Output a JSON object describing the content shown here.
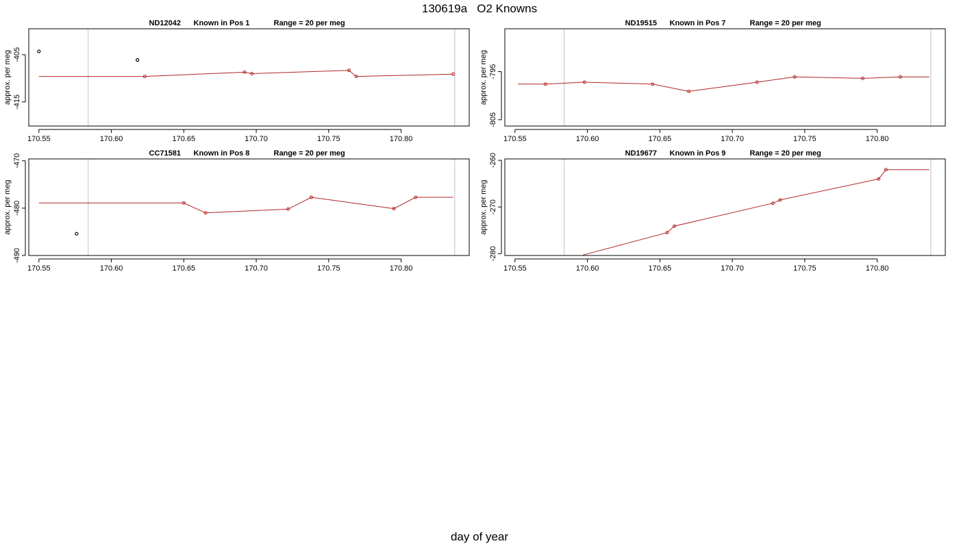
{
  "figure": {
    "title": "130619a   O2 Knowns",
    "xlabel": "day of year"
  },
  "colors": {
    "line": "#b22222",
    "frame": "#000000",
    "marker_line": "#c0c0c0"
  },
  "chart_data": [
    {
      "type": "line",
      "title_parts": [
        "ND12042",
        "Known in Pos 1",
        "Range = 20 per meg"
      ],
      "ylabel": "approx. per meg",
      "xlim": [
        170.543,
        170.847
      ],
      "ylim": [
        -420.1,
        -399.5
      ],
      "xticks": [
        170.55,
        170.6,
        170.65,
        170.7,
        170.75,
        170.8
      ],
      "xtick_labels": [
        "170.55",
        "170.60",
        "170.65",
        "170.70",
        "170.75",
        "170.80"
      ],
      "yticks": [
        -405,
        -415
      ],
      "ytick_labels": [
        "-405",
        "-415"
      ],
      "vlines": [
        170.584,
        170.837
      ],
      "line": {
        "x": [
          170.55,
          170.623,
          170.692,
          170.697,
          170.764,
          170.769,
          170.836
        ],
        "y": [
          -409.6,
          -409.6,
          -408.7,
          -409.0,
          -408.3,
          -409.6,
          -409.1
        ]
      },
      "points": {
        "x": [
          170.623,
          170.692,
          170.697,
          170.764,
          170.769,
          170.836
        ],
        "y": [
          -409.6,
          -408.7,
          -409.0,
          -408.3,
          -409.6,
          -409.1
        ]
      },
      "outliers": {
        "x": [
          170.55,
          170.618
        ],
        "y": [
          -404.3,
          -406.1
        ]
      }
    },
    {
      "type": "line",
      "title_parts": [
        "ND19515",
        "Known in Pos 7",
        "Range = 20 per meg"
      ],
      "ylabel": "approx. per meg",
      "xlim": [
        170.543,
        170.847
      ],
      "ylim": [
        -806.3,
        -786.1
      ],
      "xticks": [
        170.55,
        170.6,
        170.65,
        170.7,
        170.75,
        170.8
      ],
      "xtick_labels": [
        "170.55",
        "170.60",
        "170.65",
        "170.70",
        "170.75",
        "170.80"
      ],
      "yticks": [
        -795,
        -805
      ],
      "ytick_labels": [
        "-795",
        "-805"
      ],
      "vlines": [
        170.584,
        170.837
      ],
      "line": {
        "x": [
          170.552,
          170.571,
          170.598,
          170.645,
          170.67,
          170.717,
          170.743,
          170.79,
          170.816,
          170.836
        ],
        "y": [
          -797.6,
          -797.6,
          -797.2,
          -797.6,
          -799.1,
          -797.2,
          -796.1,
          -796.4,
          -796.1,
          -796.1
        ]
      },
      "points": {
        "x": [
          170.571,
          170.598,
          170.645,
          170.67,
          170.717,
          170.743,
          170.79,
          170.816
        ],
        "y": [
          -797.6,
          -797.2,
          -797.6,
          -799.1,
          -797.2,
          -796.1,
          -796.4,
          -796.1
        ]
      },
      "outliers": {
        "x": [],
        "y": []
      }
    },
    {
      "type": "line",
      "title_parts": [
        "CC71581",
        "Known in Pos 8",
        "Range = 20 per meg"
      ],
      "ylabel": "approx. per meg",
      "xlim": [
        170.543,
        170.847
      ],
      "ylim": [
        -490.0,
        -469.6
      ],
      "xticks": [
        170.55,
        170.6,
        170.65,
        170.7,
        170.75,
        170.8
      ],
      "xtick_labels": [
        "170.55",
        "170.60",
        "170.65",
        "170.70",
        "170.75",
        "170.80"
      ],
      "yticks": [
        -470,
        -480,
        -490
      ],
      "ytick_labels": [
        "-470",
        "-480",
        "-490"
      ],
      "vlines": [
        170.584,
        170.837
      ],
      "line": {
        "x": [
          170.55,
          170.65,
          170.665,
          170.722,
          170.738,
          170.795,
          170.81,
          170.836
        ],
        "y": [
          -478.9,
          -478.9,
          -481.0,
          -480.2,
          -477.7,
          -480.1,
          -477.7,
          -477.7
        ]
      },
      "points": {
        "x": [
          170.65,
          170.665,
          170.722,
          170.738,
          170.795,
          170.81
        ],
        "y": [
          -478.9,
          -481.0,
          -480.2,
          -477.7,
          -480.1,
          -477.7
        ]
      },
      "outliers": {
        "x": [
          170.576
        ],
        "y": [
          -485.4
        ]
      }
    },
    {
      "type": "line",
      "title_parts": [
        "ND19677",
        "Known in Pos 9",
        "Range = 20 per meg"
      ],
      "ylabel": "approx. per meg",
      "xlim": [
        170.543,
        170.847
      ],
      "ylim": [
        -280.4,
        -259.7
      ],
      "xticks": [
        170.55,
        170.6,
        170.65,
        170.7,
        170.75,
        170.8
      ],
      "xtick_labels": [
        "170.55",
        "170.60",
        "170.65",
        "170.70",
        "170.75",
        "170.80"
      ],
      "yticks": [
        -260,
        -270,
        -280
      ],
      "ytick_labels": [
        "-260",
        "-270",
        "-280"
      ],
      "vlines": [
        170.584,
        170.837
      ],
      "line": {
        "x": [
          170.597,
          170.655,
          170.66,
          170.728,
          170.733,
          170.801,
          170.806,
          170.836
        ],
        "y": [
          -280.3,
          -275.5,
          -274.1,
          -269.2,
          -268.5,
          -264.0,
          -262.0,
          -262.0
        ]
      },
      "points": {
        "x": [
          170.655,
          170.66,
          170.728,
          170.733,
          170.801,
          170.806
        ],
        "y": [
          -275.5,
          -274.1,
          -269.2,
          -268.5,
          -264.0,
          -262.0
        ]
      },
      "outliers": {
        "x": [],
        "y": []
      }
    }
  ]
}
